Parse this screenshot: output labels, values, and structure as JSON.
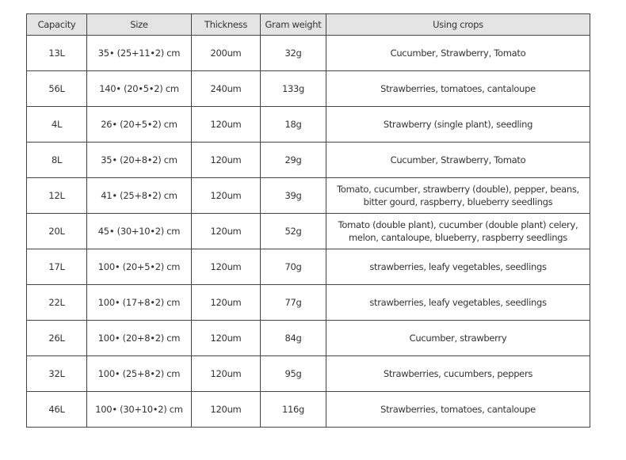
{
  "table": {
    "headers": [
      "Capacity",
      "Size",
      "Thickness",
      "Gram weight",
      "Using crops"
    ],
    "rows": [
      [
        "13L",
        "35• (25+11•2) cm",
        "200um",
        "32g",
        "Cucumber, Strawberry, Tomato"
      ],
      [
        "56L",
        "140• (20•5•2) cm",
        "240um",
        "133g",
        "Strawberries, tomatoes, cantaloupe"
      ],
      [
        "4L",
        "26• (20+5•2) cm",
        "120um",
        "18g",
        "Strawberry (single plant), seedling"
      ],
      [
        "8L",
        "35• (20+8•2) cm",
        "120um",
        "29g",
        "Cucumber, Strawberry, Tomato"
      ],
      [
        "12L",
        "41• (25+8•2) cm",
        "120um",
        "39g",
        "Tomato, cucumber, strawberry (double), pepper, beans, bitter gourd, raspberry, blueberry seedlings"
      ],
      [
        "20L",
        "45• (30+10•2) cm",
        "120um",
        "52g",
        "Tomato (double plant), cucumber (double plant) celery, melon, cantaloupe, blueberry, raspberry seedlings"
      ],
      [
        "17L",
        "100• (20+5•2) cm",
        "120um",
        "70g",
        "strawberries, leafy vegetables, seedlings"
      ],
      [
        "22L",
        "100• (17+8•2) cm",
        "120um",
        "77g",
        "strawberries, leafy vegetables, seedlings"
      ],
      [
        "26L",
        "100• (20+8•2) cm",
        "120um",
        "84g",
        "Cucumber, strawberry"
      ],
      [
        "32L",
        "100• (25+8•2) cm",
        "120um",
        "95g",
        "Strawberries, cucumbers, peppers"
      ],
      [
        "46L",
        "100• (30+10•2) cm",
        "120um",
        "116g",
        "Strawberries, tomatoes, cantaloupe"
      ]
    ]
  }
}
